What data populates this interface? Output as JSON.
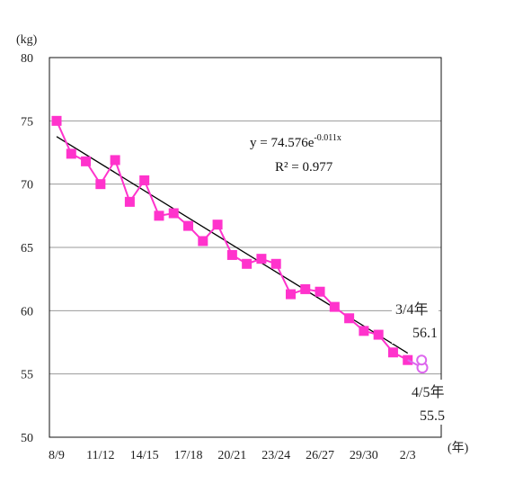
{
  "chart_data": {
    "type": "line",
    "ylabel": "(kg)",
    "xlabel": "(年)",
    "ylim": [
      50,
      80
    ],
    "yticks": [
      50,
      55,
      60,
      65,
      70,
      75,
      80
    ],
    "x_tick_labels": [
      "8/9",
      "11/12",
      "14/15",
      "17/18",
      "20/21",
      "23/24",
      "26/27",
      "29/30",
      "2/3"
    ],
    "grid": "horizontal",
    "series": [
      {
        "marker": "square",
        "color": "#ff33cc",
        "values": [
          75.0,
          72.4,
          71.8,
          70.0,
          71.9,
          68.6,
          70.3,
          67.5,
          67.7,
          66.7,
          65.5,
          66.8,
          64.4,
          63.7,
          64.1,
          63.7,
          61.3,
          61.7,
          61.5,
          60.3,
          59.4,
          58.4,
          58.1,
          56.7,
          56.1
        ]
      },
      {
        "marker": "open-circle",
        "color": "#dd66ee",
        "values": [
          56.1,
          55.5
        ]
      }
    ],
    "trendline": {
      "type": "exponential",
      "a": 74.576,
      "b": -0.011,
      "equation": "y = 74.576e",
      "exponent": "-0.011x",
      "r2_text": "R² = 0.977"
    },
    "annotations": [
      {
        "label": "3/4年",
        "value": "56.1"
      },
      {
        "label": "4/5年",
        "value": "55.5"
      }
    ]
  }
}
